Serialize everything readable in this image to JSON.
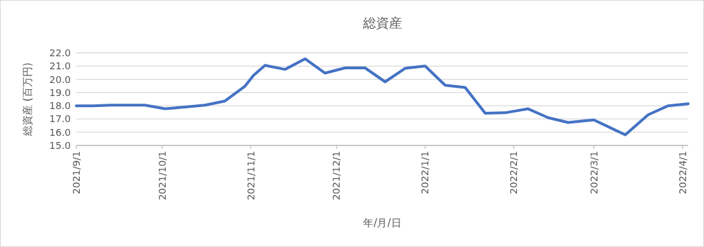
{
  "chart_data": {
    "type": "line",
    "title": "総資産",
    "xlabel": "年/月/日",
    "ylabel": "総資産 (百万円)",
    "x": [
      "2021-09-01",
      "2021-09-07",
      "2021-09-13",
      "2021-09-19",
      "2021-09-25",
      "2021-10-02",
      "2021-10-09",
      "2021-10-16",
      "2021-10-23",
      "2021-10-30",
      "2021-11-02",
      "2021-11-06",
      "2021-11-13",
      "2021-11-20",
      "2021-11-27",
      "2021-12-04",
      "2021-12-11",
      "2021-12-18",
      "2021-12-25",
      "2022-01-01",
      "2022-01-08",
      "2022-01-15",
      "2022-01-22",
      "2022-01-29",
      "2022-02-06",
      "2022-02-13",
      "2022-02-20",
      "2022-03-01",
      "2022-03-06",
      "2022-03-12",
      "2022-03-20",
      "2022-03-27",
      "2022-04-03"
    ],
    "series": [
      {
        "color": "#4472c4",
        "values": [
          18.0,
          18.0,
          18.05,
          18.05,
          18.05,
          17.77,
          17.9,
          18.05,
          18.36,
          19.48,
          20.3,
          21.05,
          20.75,
          21.55,
          20.47,
          20.86,
          20.86,
          19.81,
          20.83,
          21.0,
          19.55,
          19.38,
          17.44,
          17.47,
          17.77,
          17.1,
          16.74,
          16.93,
          16.42,
          15.8,
          17.32,
          18.0,
          18.15
        ]
      }
    ],
    "xlim": [
      "2021-09-01",
      "2022-04-03"
    ],
    "xticks": [
      {
        "value": "2021-09-01",
        "label": "2021/9/1"
      },
      {
        "value": "2021-10-01",
        "label": "2021/10/1"
      },
      {
        "value": "2021-11-01",
        "label": "2021/11/1"
      },
      {
        "value": "2021-12-01",
        "label": "2021/12/1"
      },
      {
        "value": "2022-01-01",
        "label": "2022/1/1"
      },
      {
        "value": "2022-02-01",
        "label": "2022/2/1"
      },
      {
        "value": "2022-03-01",
        "label": "2022/3/1"
      },
      {
        "value": "2022-04-01",
        "label": "2022/4/1"
      }
    ],
    "ylim": [
      15,
      22
    ],
    "yticks": [
      {
        "value": 15,
        "label": "15.0"
      },
      {
        "value": 16,
        "label": "16.0"
      },
      {
        "value": 17,
        "label": "17.0"
      },
      {
        "value": 18,
        "label": "18.0"
      },
      {
        "value": 19,
        "label": "19.0"
      },
      {
        "value": 20,
        "label": "20.0"
      },
      {
        "value": 21,
        "label": "21.0"
      },
      {
        "value": 22,
        "label": "22.0"
      }
    ],
    "grid": "y",
    "marker": "none",
    "line_style": "solid"
  }
}
